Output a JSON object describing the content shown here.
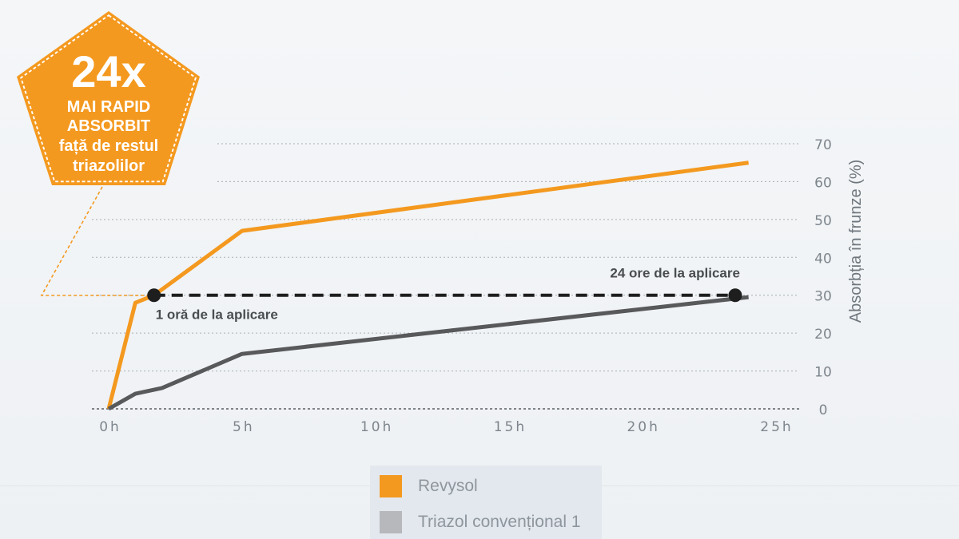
{
  "colors": {
    "revysol": "#f4991f",
    "conventional": "#58595b",
    "marker": "#1e1e1e",
    "badge": "#f4991f",
    "grid": "#a8aeb4",
    "tick": "#7d858c"
  },
  "badge": {
    "big": "24x",
    "line1": "MAI RAPID",
    "line2": "ABSORBIT",
    "line3": "față de restul",
    "line4": "triazolilor"
  },
  "chart_data": {
    "type": "line",
    "ylabel": "Absorbția în frunze (%)",
    "xlabel": "",
    "xlim": [
      0,
      25
    ],
    "ylim": [
      0,
      70
    ],
    "x_ticks": [
      0,
      5,
      10,
      15,
      20,
      25
    ],
    "x_tick_labels": [
      "0h",
      "5h",
      "10h",
      "15h",
      "20h",
      "25h"
    ],
    "y_ticks": [
      0,
      10,
      20,
      30,
      40,
      50,
      60,
      70
    ],
    "y_tick_labels": [
      "0",
      "10",
      "20",
      "30",
      "40",
      "50",
      "60",
      "70"
    ],
    "y_axis_position": "right",
    "grid": true,
    "series": [
      {
        "name": "Revysol",
        "color": "#f4991f",
        "x": [
          0,
          1,
          1.7,
          5,
          24
        ],
        "y": [
          0,
          28,
          30,
          47,
          65
        ]
      },
      {
        "name": "Triazol convențional 1",
        "color": "#58595b",
        "x": [
          0,
          1,
          2,
          5,
          24
        ],
        "y": [
          0,
          4,
          5.5,
          14.5,
          29.5
        ]
      }
    ],
    "reference_line": {
      "y": 30,
      "x_start": 1.7,
      "x_end": 23.5
    },
    "annotations": [
      {
        "text": "1 oră de la aplicare",
        "x": 1.7,
        "y": 30
      },
      {
        "text": "24 ore de la aplicare",
        "x": 23.5,
        "y": 30
      }
    ],
    "legend_position": "bottom-center"
  }
}
